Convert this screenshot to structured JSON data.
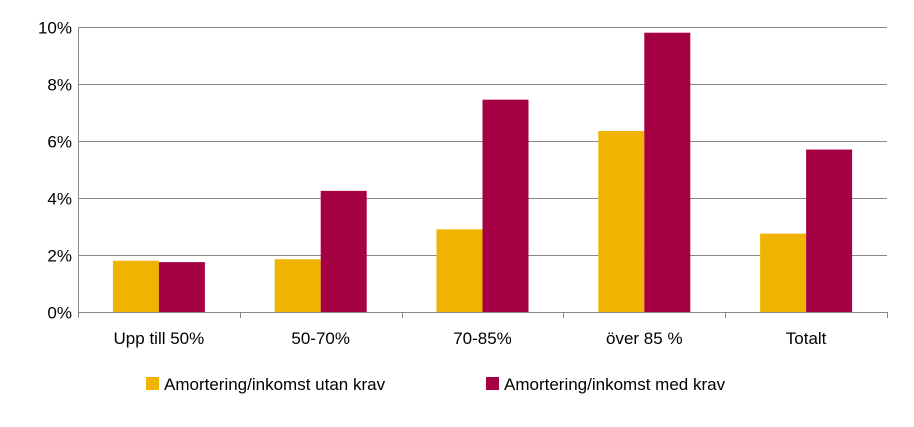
{
  "chart_data": {
    "type": "bar",
    "categories": [
      "Upp till 50%",
      "50-70%",
      "70-85%",
      "över 85 %",
      "Totalt"
    ],
    "series": [
      {
        "name": "Amortering/inkomst utan krav",
        "color": "#F0B400",
        "values": [
          1.8,
          1.85,
          2.9,
          6.35,
          2.75
        ]
      },
      {
        "name": "Amortering/inkomst med krav",
        "color": "#A50044",
        "values": [
          1.75,
          4.25,
          7.45,
          9.8,
          5.7
        ]
      }
    ],
    "ylim": [
      0,
      10
    ],
    "yticks": [
      0,
      2,
      4,
      6,
      8,
      10
    ],
    "ytick_labels": [
      "0%",
      "2%",
      "4%",
      "6%",
      "8%",
      "10%"
    ],
    "grid": true,
    "legend_position": "bottom",
    "title": "",
    "xlabel": "",
    "ylabel": ""
  }
}
